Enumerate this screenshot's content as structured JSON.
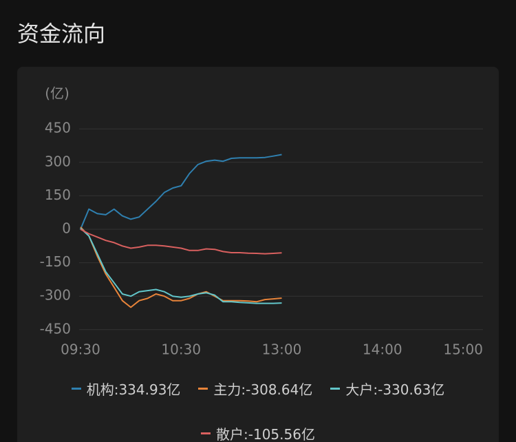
{
  "header": {
    "title": "资金流向"
  },
  "chart_data": {
    "type": "line",
    "y_unit": "(亿)",
    "x": [
      0,
      5,
      10,
      15,
      20,
      25,
      30,
      35,
      40,
      45,
      50,
      55,
      60,
      65,
      70,
      75,
      80,
      85,
      90,
      95,
      100,
      105,
      110,
      115,
      120
    ],
    "xlim": [
      0,
      240
    ],
    "xticks": [
      {
        "value": 0,
        "label": "09:30"
      },
      {
        "value": 60,
        "label": "10:30"
      },
      {
        "value": 120,
        "label": "13:00"
      },
      {
        "value": 180,
        "label": "14:00"
      },
      {
        "value": 240,
        "label": "15:00"
      }
    ],
    "ylim": [
      -500,
      500
    ],
    "yticks": [
      -450,
      -300,
      -150,
      0,
      150,
      300,
      450
    ],
    "grid": true,
    "series": [
      {
        "name": "机构:334.93亿",
        "color": "#2f80b0",
        "values": [
          0,
          90,
          70,
          65,
          90,
          60,
          45,
          55,
          90,
          125,
          165,
          185,
          195,
          250,
          290,
          305,
          310,
          305,
          318,
          320,
          320,
          320,
          322,
          328,
          334.93
        ]
      },
      {
        "name": "主力:-308.64亿",
        "color": "#e8843a",
        "values": [
          10,
          -30,
          -120,
          -200,
          -260,
          -320,
          -350,
          -320,
          -310,
          -290,
          -300,
          -320,
          -320,
          -310,
          -290,
          -280,
          -300,
          -320,
          -320,
          -320,
          -322,
          -325,
          -315,
          -312,
          -308.64
        ]
      },
      {
        "name": "大户:-330.63亿",
        "color": "#62c6ca",
        "values": [
          5,
          -30,
          -110,
          -190,
          -240,
          -290,
          -300,
          -280,
          -275,
          -270,
          -280,
          -300,
          -305,
          -300,
          -290,
          -285,
          -295,
          -325,
          -325,
          -328,
          -330,
          -332,
          -332,
          -332,
          -330.63
        ]
      },
      {
        "name": "散户:-105.56亿",
        "color": "#d9605f",
        "values": [
          0,
          -20,
          -35,
          -50,
          -60,
          -75,
          -85,
          -80,
          -72,
          -72,
          -75,
          -80,
          -85,
          -95,
          -95,
          -88,
          -90,
          -100,
          -105,
          -105,
          -107,
          -108,
          -110,
          -108,
          -105.56
        ]
      }
    ]
  }
}
